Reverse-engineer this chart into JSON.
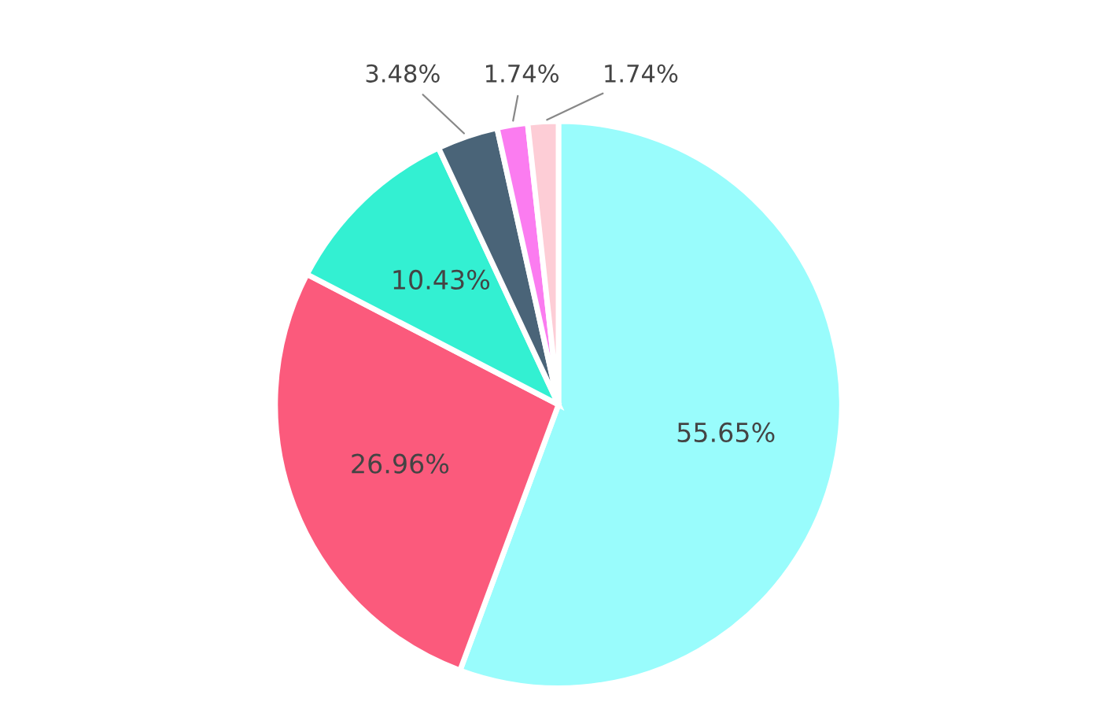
{
  "chart_data": {
    "type": "pie",
    "categories": [
      null,
      null,
      null,
      null,
      null,
      null
    ],
    "values": [
      55.65,
      26.96,
      10.43,
      3.48,
      1.74,
      1.74
    ],
    "colors": [
      "#99fcfc",
      "#fb5a7c",
      "#33f0d2",
      "#4a6478",
      "#fb7cf0",
      "#fdcdd6"
    ],
    "value_labels": [
      "55.65%",
      "26.96%",
      "10.43%",
      "3.48%",
      "1.74%",
      "1.74%"
    ]
  }
}
